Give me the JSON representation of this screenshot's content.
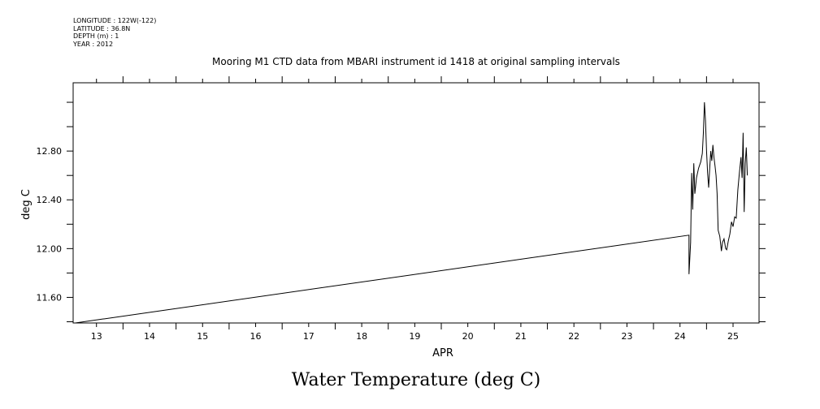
{
  "header": {
    "longitude": "LONGITUDE : 122W(-122)",
    "latitude": "LATITUDE : 36.8N",
    "depth": "DEPTH (m) : 1",
    "year": "YEAR : 2012"
  },
  "chart_data": {
    "type": "line",
    "title": "Mooring M1 CTD data from MBARI instrument id 1418 at original sampling intervals",
    "xlabel": "APR",
    "ylabel": "deg C",
    "bottom_title": "Water Temperature (deg C)",
    "xlim": [
      12.56,
      25.49
    ],
    "ylim": [
      11.39,
      13.36
    ],
    "x_ticks": [
      13,
      14,
      15,
      16,
      17,
      18,
      19,
      20,
      21,
      22,
      23,
      24,
      25
    ],
    "x_tick_labels": [
      "13",
      "14",
      "15",
      "16",
      "17",
      "18",
      "19",
      "20",
      "21",
      "22",
      "23",
      "24",
      "25"
    ],
    "y_ticks": [
      11.6,
      12.0,
      12.4,
      12.8
    ],
    "y_tick_labels": [
      "11.60",
      "12.00",
      "12.40",
      "12.80"
    ],
    "grid": false,
    "series": [
      {
        "values": [
          [
            12.6,
            11.39
          ],
          [
            24.17,
            12.11
          ],
          [
            24.17,
            11.79
          ],
          [
            24.2,
            12.05
          ],
          [
            24.22,
            12.62
          ],
          [
            24.24,
            12.32
          ],
          [
            24.26,
            12.7
          ],
          [
            24.28,
            12.45
          ],
          [
            24.31,
            12.58
          ],
          [
            24.35,
            12.66
          ],
          [
            24.39,
            12.71
          ],
          [
            24.42,
            12.78
          ],
          [
            24.44,
            12.95
          ],
          [
            24.46,
            13.2
          ],
          [
            24.48,
            13.05
          ],
          [
            24.5,
            12.8
          ],
          [
            24.52,
            12.62
          ],
          [
            24.54,
            12.5
          ],
          [
            24.56,
            12.66
          ],
          [
            24.58,
            12.8
          ],
          [
            24.6,
            12.72
          ],
          [
            24.62,
            12.85
          ],
          [
            24.64,
            12.75
          ],
          [
            24.66,
            12.68
          ],
          [
            24.68,
            12.6
          ],
          [
            24.7,
            12.45
          ],
          [
            24.72,
            12.15
          ],
          [
            24.75,
            12.1
          ],
          [
            24.78,
            11.98
          ],
          [
            24.8,
            12.05
          ],
          [
            24.83,
            12.08
          ],
          [
            24.86,
            12.0
          ],
          [
            24.88,
            11.99
          ],
          [
            24.91,
            12.06
          ],
          [
            24.94,
            12.12
          ],
          [
            24.97,
            12.22
          ],
          [
            25.0,
            12.18
          ],
          [
            25.03,
            12.26
          ],
          [
            25.06,
            12.25
          ],
          [
            25.09,
            12.48
          ],
          [
            25.12,
            12.62
          ],
          [
            25.15,
            12.75
          ],
          [
            25.17,
            12.58
          ],
          [
            25.19,
            12.95
          ],
          [
            25.21,
            12.3
          ],
          [
            25.23,
            12.7
          ],
          [
            25.25,
            12.83
          ],
          [
            25.27,
            12.6
          ]
        ]
      }
    ]
  }
}
